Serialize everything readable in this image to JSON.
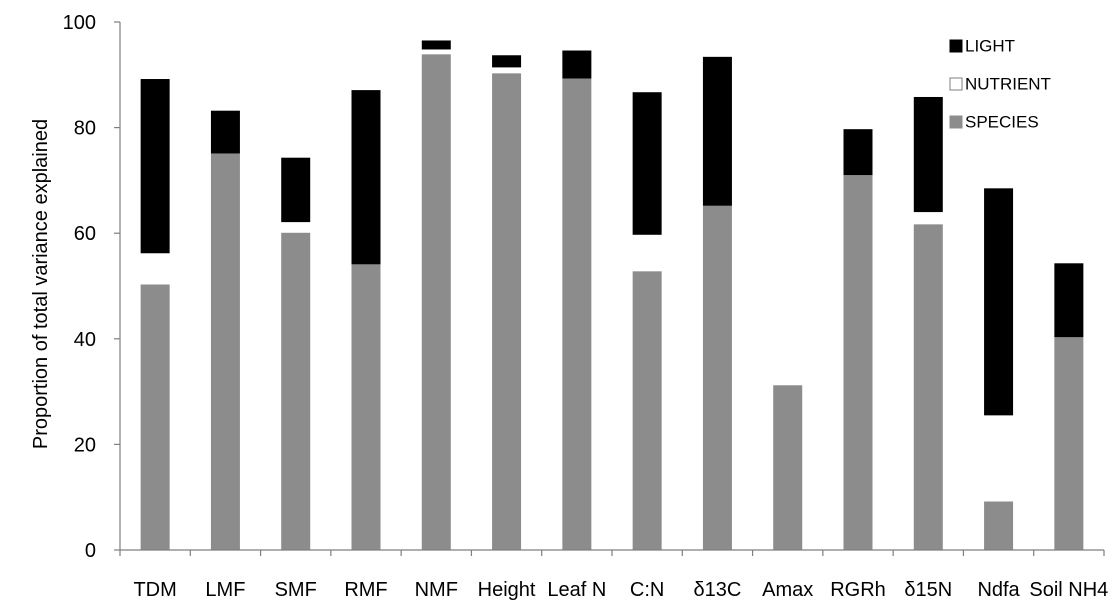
{
  "chart_data": {
    "type": "bar",
    "stacked": true,
    "title": "",
    "xlabel": "",
    "ylabel": "Proportion of total variance explained",
    "ylim": [
      0,
      100
    ],
    "yticks": [
      0,
      20,
      40,
      60,
      80,
      100
    ],
    "grid": false,
    "legend_position": "top-right",
    "categories": [
      "TDM",
      "LMF",
      "SMF",
      "RMF",
      "NMF",
      "Height",
      "Leaf N",
      "C:N",
      "δ13C",
      "Amax",
      "RGRh",
      "δ15N",
      "Ndfa",
      "Soil NH4"
    ],
    "series": [
      {
        "name": "SPECIES",
        "color": "#8c8c8c",
        "values": [
          50.3,
          75.1,
          60.1,
          54.1,
          93.9,
          90.3,
          89.3,
          52.8,
          65.2,
          31.2,
          71.0,
          61.7,
          9.2,
          40.3
        ]
      },
      {
        "name": "NUTRIENT",
        "color": "#ffffff",
        "values": [
          5.9,
          0,
          2.0,
          0,
          0.9,
          1.1,
          0,
          6.9,
          0,
          0,
          0,
          2.3,
          16.3,
          0
        ]
      },
      {
        "name": "LIGHT",
        "color": "#000000",
        "values": [
          33.0,
          8.1,
          12.2,
          33.0,
          1.7,
          2.3,
          5.3,
          27.0,
          28.2,
          0,
          8.7,
          21.8,
          43.0,
          14.0
        ]
      }
    ],
    "legend_order": [
      "LIGHT",
      "NUTRIENT",
      "SPECIES"
    ]
  }
}
